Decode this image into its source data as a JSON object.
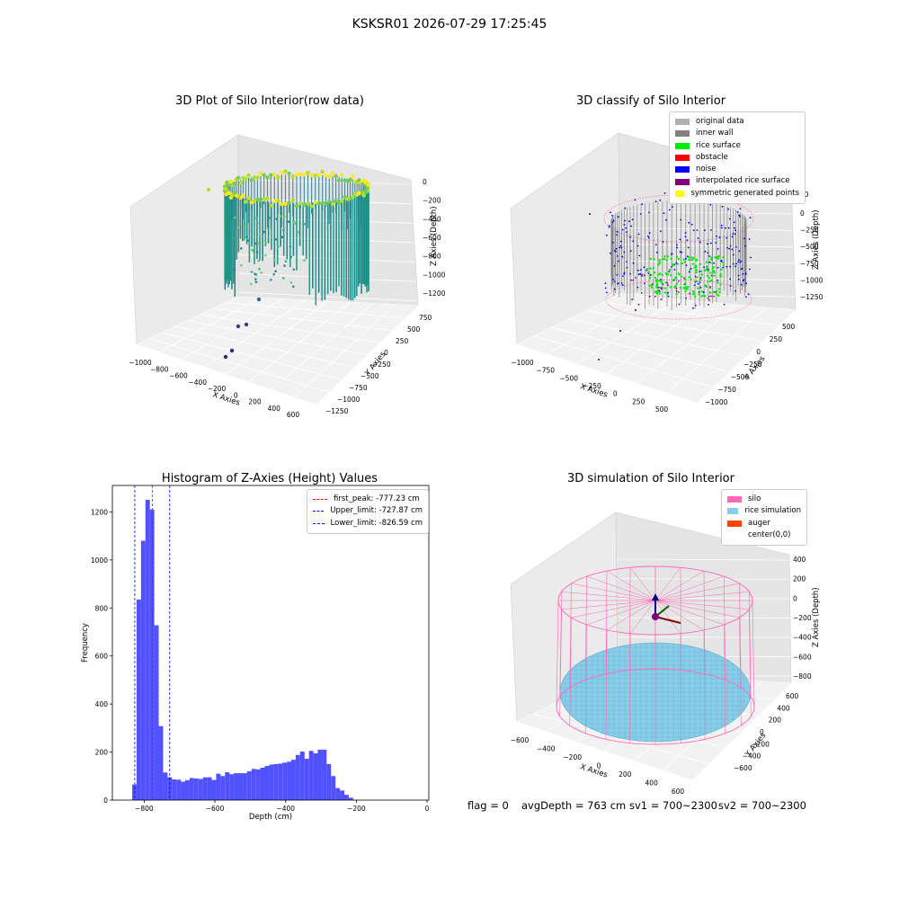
{
  "suptitle": "KSKSR01 2026-07-29 17:25:45",
  "footer": {
    "flag": "flag = 0",
    "avg_depth": "avgDepth = 763 cm",
    "sv1": "sv1 = 700~2300",
    "sv2": "sv2 = 700~2300"
  },
  "colors": {
    "silo": "#ff69b4",
    "rice_simulation": "#87ceeb",
    "auger": "#ff4500",
    "original_data": "#b0b0b0",
    "inner_wall": "#808080",
    "rice_surface": "#00ee00",
    "obstacle": "#ff0000",
    "noise": "#0000ff",
    "interpolated_rice_surface": "#800080",
    "symmetric_generated_points": "#ffff00",
    "hist_bar": "#5151ff"
  },
  "chart_data": [
    {
      "type": "scatter",
      "subtype": "3d",
      "title": "3D Plot of Silo Interior(row data)",
      "xlabel": "X Axies",
      "ylabel": "Y Axies",
      "zlabel": "Z Axies (Depth)",
      "x_ticks": [
        "−1000",
        "−800",
        "−600",
        "−400",
        "−200",
        "0",
        "200",
        "400",
        "600"
      ],
      "y_ticks": [
        "−1250",
        "−1000",
        "−750",
        "−500",
        "−250",
        "0",
        "250",
        "500",
        "750"
      ],
      "z_ticks": [
        "0",
        "−200",
        "−400",
        "−600",
        "−800",
        "−1000",
        "−1200"
      ],
      "colormap": "viridis"
    },
    {
      "type": "scatter",
      "subtype": "3d",
      "title": "3D classify of Silo Interior",
      "xlabel": "X Axies",
      "ylabel": "Y Axies",
      "zlabel": "Z Axies (Depth)",
      "x_ticks": [
        "−1000",
        "−750",
        "−500",
        "−250",
        "0",
        "250",
        "500"
      ],
      "y_ticks": [
        "−1000",
        "−750",
        "−500",
        "−250",
        "0",
        "250",
        "500"
      ],
      "z_ticks": [
        "0",
        "−250",
        "−500",
        "−750",
        "−1000",
        "−1250"
      ],
      "z_ticks_partial": [
        "50"
      ],
      "legend": [
        "original data",
        "inner wall",
        "rice surface",
        "obstacle",
        "noise",
        "interpolated rice surface",
        "symmetric generated points"
      ],
      "legend_position": "top-right"
    },
    {
      "type": "bar",
      "subtype": "histogram",
      "title": "Histogram of Z-Axies (Height) Values",
      "xlabel": "Depth (cm)",
      "ylabel": "Frequency",
      "xlim": [
        -890,
        5
      ],
      "ylim": [
        0,
        1310
      ],
      "x_ticks": [
        -800,
        -600,
        -400,
        -200,
        0
      ],
      "x_tick_labels": [
        "−800",
        "−600",
        "−400",
        "−200",
        "0"
      ],
      "y_ticks": [
        0,
        200,
        400,
        600,
        800,
        1000,
        1200
      ],
      "bin_width": 12.5,
      "bins": [
        [
          -834,
          65
        ],
        [
          -821.5,
          835
        ],
        [
          -809,
          1080
        ],
        [
          -796.5,
          1250
        ],
        [
          -784,
          1210
        ],
        [
          -771.5,
          728
        ],
        [
          -759,
          308
        ],
        [
          -746.5,
          115
        ],
        [
          -734,
          95
        ],
        [
          -721.5,
          86
        ],
        [
          -709,
          85
        ],
        [
          -696.5,
          77
        ],
        [
          -684,
          83
        ],
        [
          -671.5,
          92
        ],
        [
          -659,
          90
        ],
        [
          -646.5,
          88
        ],
        [
          -634,
          95
        ],
        [
          -621.5,
          95
        ],
        [
          -609,
          84
        ],
        [
          -596.5,
          110
        ],
        [
          -584,
          100
        ],
        [
          -571.5,
          116
        ],
        [
          -559,
          108
        ],
        [
          -546.5,
          112
        ],
        [
          -534,
          112
        ],
        [
          -521.5,
          112
        ],
        [
          -509,
          120
        ],
        [
          -496.5,
          130
        ],
        [
          -484,
          128
        ],
        [
          -471.5,
          135
        ],
        [
          -459,
          142
        ],
        [
          -446.5,
          148
        ],
        [
          -434,
          150
        ],
        [
          -421.5,
          152
        ],
        [
          -409,
          156
        ],
        [
          -396.5,
          160
        ],
        [
          -384,
          168
        ],
        [
          -371.5,
          188
        ],
        [
          -359,
          202
        ],
        [
          -346.5,
          172
        ],
        [
          -334,
          205
        ],
        [
          -321.5,
          195
        ],
        [
          -309,
          210
        ],
        [
          -296.5,
          210
        ],
        [
          -284,
          150
        ],
        [
          -271.5,
          100
        ],
        [
          -259,
          50
        ],
        [
          -246.5,
          40
        ],
        [
          -234,
          22
        ],
        [
          -221.5,
          10
        ]
      ],
      "vlines": [
        {
          "label": "first_peak: -777.23 cm",
          "value": -777.23,
          "color": "#ff0000"
        },
        {
          "label": "Upper_limit: -727.87 cm",
          "value": -727.87,
          "color": "#0000ff"
        },
        {
          "label": "Lower_limit: -826.59 cm",
          "value": -826.59,
          "color": "#0000ff"
        }
      ],
      "legend_position": "top-right"
    },
    {
      "type": "scatter",
      "subtype": "3d",
      "title": "3D simulation of Silo Interior",
      "xlabel": "X Axies",
      "ylabel": "Y Axies",
      "zlabel": "Z Axies (Depth)",
      "x_ticks": [
        "−600",
        "−400",
        "−200",
        "0",
        "200",
        "400",
        "600"
      ],
      "y_ticks": [
        "−600",
        "−400",
        "−200",
        "0",
        "200",
        "400",
        "600"
      ],
      "z_ticks": [
        "400",
        "200",
        "0",
        "−200",
        "−400",
        "−600",
        "−800"
      ],
      "legend": [
        "silo",
        "rice simulation",
        "auger",
        "center(0,0)"
      ],
      "legend_position": "top-right"
    }
  ]
}
